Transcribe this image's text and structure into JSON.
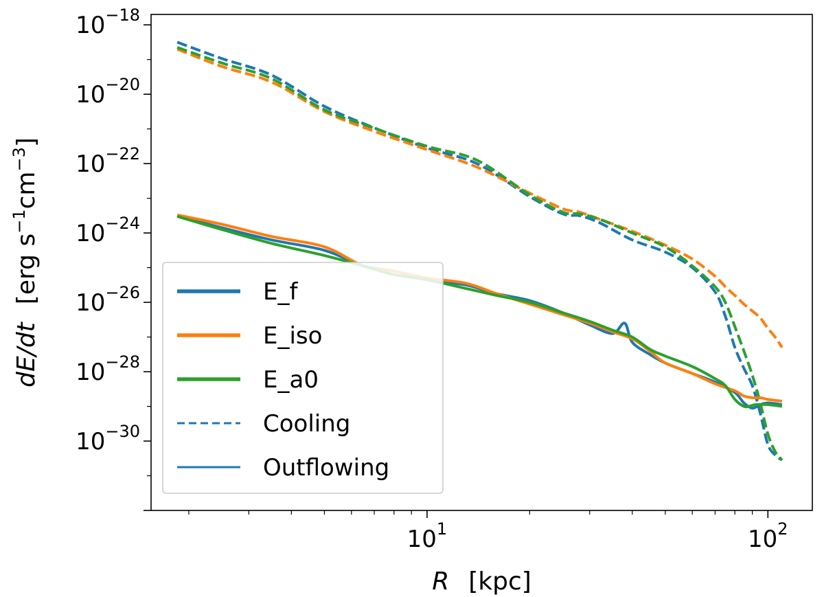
{
  "chart_data": {
    "type": "line",
    "title": "",
    "xlabel": {
      "var": "R",
      "unit": "[kpc]"
    },
    "ylabel": {
      "var": "dE/dt",
      "unit_prefix": "[erg s",
      "unit_exp1": "−1",
      "unit_mid": "cm",
      "unit_exp2": "−3",
      "unit_suffix": "]"
    },
    "xscale": "log",
    "yscale": "log",
    "xlim": [
      1.55,
      135
    ],
    "ylim": [
      1e-32,
      2e-18
    ],
    "x_ticks": [
      {
        "value": 10,
        "base": "10",
        "exp": "1"
      },
      {
        "value": 100,
        "base": "10",
        "exp": "2"
      }
    ],
    "y_ticks": [
      {
        "value": 1e-18,
        "base": "10",
        "exp": "−18"
      },
      {
        "value": 1e-20,
        "base": "10",
        "exp": "−20"
      },
      {
        "value": 1e-22,
        "base": "10",
        "exp": "−22"
      },
      {
        "value": 1e-24,
        "base": "10",
        "exp": "−24"
      },
      {
        "value": 1e-26,
        "base": "10",
        "exp": "−26"
      },
      {
        "value": 1e-28,
        "base": "10",
        "exp": "−28"
      },
      {
        "value": 1e-30,
        "base": "10",
        "exp": "−30"
      }
    ],
    "colors": {
      "E_f": "#1f77b4",
      "E_iso": "#ff7f0e",
      "E_a0": "#2ca02c"
    },
    "series": [
      {
        "name": "E_f",
        "style": "dashed",
        "color": "#1f77b4",
        "x": [
          1.85,
          2.5,
          3.5,
          5,
          7,
          10,
          14,
          20,
          25,
          28,
          32,
          40,
          50,
          60,
          70,
          75,
          80,
          85,
          90,
          95,
          100,
          105,
          110
        ],
        "log10y": [
          -18.5,
          -18.97,
          -19.45,
          -20.35,
          -20.97,
          -21.55,
          -22.0,
          -22.95,
          -23.45,
          -23.5,
          -23.7,
          -24.2,
          -24.55,
          -25.0,
          -25.7,
          -26.4,
          -27.3,
          -27.9,
          -28.4,
          -29.2,
          -30.1,
          -30.4,
          -30.55
        ]
      },
      {
        "name": "E_iso",
        "style": "dashed",
        "color": "#ff7f0e",
        "x": [
          1.85,
          2.5,
          3.5,
          5,
          7,
          10,
          14,
          20,
          25,
          28,
          32,
          40,
          50,
          60,
          70,
          75,
          80,
          85,
          90,
          95,
          100,
          105,
          110
        ],
        "log10y": [
          -18.7,
          -19.2,
          -19.65,
          -20.5,
          -21.07,
          -21.6,
          -22.1,
          -22.85,
          -23.3,
          -23.4,
          -23.6,
          -23.95,
          -24.35,
          -24.75,
          -25.25,
          -25.55,
          -25.8,
          -26.05,
          -26.25,
          -26.45,
          -26.75,
          -27.0,
          -27.3
        ]
      },
      {
        "name": "E_a0",
        "style": "dashed",
        "color": "#2ca02c",
        "x": [
          1.85,
          2.5,
          3.5,
          5,
          7,
          10,
          14,
          20,
          25,
          28,
          32,
          40,
          50,
          60,
          70,
          75,
          80,
          85,
          90,
          95,
          100,
          105,
          110
        ],
        "log10y": [
          -18.65,
          -19.1,
          -19.55,
          -20.45,
          -20.98,
          -21.5,
          -21.9,
          -22.9,
          -23.4,
          -23.45,
          -23.6,
          -24.0,
          -24.4,
          -24.95,
          -25.55,
          -26.0,
          -26.7,
          -27.4,
          -28.1,
          -28.9,
          -29.8,
          -30.3,
          -30.55
        ]
      },
      {
        "name": "E_f",
        "style": "solid",
        "color": "#1f77b4",
        "x": [
          1.85,
          2.5,
          3.5,
          5,
          6.5,
          8,
          10,
          13,
          16,
          20,
          25,
          30,
          35,
          38,
          40,
          45,
          50,
          60,
          70,
          80,
          85,
          90,
          95,
          100,
          110
        ],
        "log10y": [
          -23.5,
          -23.85,
          -24.2,
          -24.5,
          -24.95,
          -25.1,
          -25.35,
          -25.5,
          -25.75,
          -25.95,
          -26.3,
          -26.65,
          -26.9,
          -26.6,
          -27.15,
          -27.5,
          -27.75,
          -28.05,
          -28.3,
          -28.6,
          -28.9,
          -29.05,
          -28.95,
          -28.9,
          -28.95
        ]
      },
      {
        "name": "E_iso",
        "style": "solid",
        "color": "#ff7f0e",
        "x": [
          1.85,
          2.5,
          3.5,
          5,
          6.5,
          8,
          10,
          13,
          16,
          20,
          25,
          30,
          35,
          40,
          45,
          50,
          60,
          70,
          80,
          85,
          90,
          95,
          100,
          110
        ],
        "log10y": [
          -23.48,
          -23.75,
          -24.1,
          -24.4,
          -24.95,
          -25.1,
          -25.3,
          -25.45,
          -25.75,
          -26.05,
          -26.35,
          -26.6,
          -26.85,
          -27.05,
          -27.4,
          -27.75,
          -28.05,
          -28.35,
          -28.55,
          -28.7,
          -28.75,
          -28.75,
          -28.8,
          -28.85
        ]
      },
      {
        "name": "E_a0",
        "style": "solid",
        "color": "#2ca02c",
        "x": [
          1.85,
          2.5,
          3.5,
          5,
          6.5,
          8,
          10,
          13,
          16,
          20,
          25,
          30,
          35,
          40,
          45,
          50,
          60,
          70,
          75,
          80,
          85,
          88,
          92,
          100,
          110
        ],
        "log10y": [
          -23.52,
          -23.9,
          -24.3,
          -24.65,
          -24.95,
          -25.2,
          -25.35,
          -25.6,
          -25.8,
          -26.0,
          -26.3,
          -26.55,
          -26.8,
          -27.0,
          -27.35,
          -27.55,
          -27.85,
          -28.2,
          -28.4,
          -28.8,
          -29.0,
          -29.0,
          -28.95,
          -28.95,
          -29.0
        ]
      }
    ],
    "legend": {
      "position": "lower-left",
      "entries": [
        {
          "label": "E_f",
          "color": "#1f77b4",
          "style": "solid-thick"
        },
        {
          "label": "E_iso",
          "color": "#ff7f0e",
          "style": "solid-thick"
        },
        {
          "label": "E_a0",
          "color": "#2ca02c",
          "style": "solid-thick"
        },
        {
          "label": "Cooling",
          "color": "#1f77b4",
          "style": "dashed"
        },
        {
          "label": "Outflowing",
          "color": "#1f77b4",
          "style": "solid"
        }
      ]
    }
  }
}
